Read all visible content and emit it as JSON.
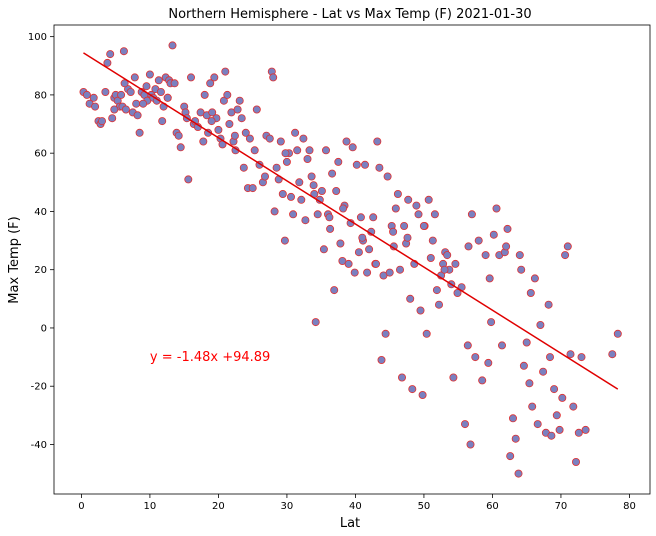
{
  "chart_data": {
    "type": "scatter",
    "title": "Northern Hemisphere - Lat vs Max Temp (F) 2021-01-30",
    "xlabel": "Lat",
    "ylabel": "Max Temp (F)",
    "xlim": [
      -4,
      83
    ],
    "ylim": [
      -57,
      104
    ],
    "xticks": [
      0,
      10,
      20,
      30,
      40,
      50,
      60,
      70,
      80
    ],
    "yticks": [
      -40,
      -20,
      0,
      20,
      40,
      60,
      80,
      100
    ],
    "grid": false,
    "point_fill": "#7a80c0",
    "point_stroke": "#e03030",
    "line_color": "#e00000",
    "regression": {
      "slope": -1.48,
      "intercept": 94.89,
      "x_range": [
        0.3,
        78.3
      ]
    },
    "annotation": {
      "text": "y = -1.48x +94.89",
      "x": 10,
      "y": -10,
      "color": "#ff0000"
    },
    "points": [
      [
        0.3,
        81
      ],
      [
        0.8,
        80
      ],
      [
        1.2,
        77
      ],
      [
        1.8,
        79
      ],
      [
        2.0,
        76
      ],
      [
        2.5,
        71
      ],
      [
        2.8,
        70
      ],
      [
        3.0,
        71
      ],
      [
        3.5,
        81
      ],
      [
        3.8,
        91
      ],
      [
        4.2,
        94
      ],
      [
        4.5,
        72
      ],
      [
        4.8,
        79
      ],
      [
        5.0,
        80
      ],
      [
        5.3,
        78
      ],
      [
        5.6,
        76
      ],
      [
        5.8,
        80
      ],
      [
        6.0,
        76
      ],
      [
        6.2,
        95
      ],
      [
        6.5,
        75
      ],
      [
        6.8,
        82
      ],
      [
        7.2,
        81
      ],
      [
        7.5,
        74
      ],
      [
        7.8,
        86
      ],
      [
        8.0,
        77
      ],
      [
        8.2,
        73
      ],
      [
        8.5,
        67
      ],
      [
        8.8,
        81
      ],
      [
        9.2,
        80
      ],
      [
        9.5,
        83
      ],
      [
        9.6,
        78
      ],
      [
        10.0,
        87
      ],
      [
        10.2,
        80
      ],
      [
        10.5,
        79
      ],
      [
        10.8,
        82
      ],
      [
        11.0,
        78
      ],
      [
        11.3,
        85
      ],
      [
        11.6,
        81
      ],
      [
        11.8,
        71
      ],
      [
        12.0,
        76
      ],
      [
        12.3,
        86
      ],
      [
        12.6,
        79
      ],
      [
        12.8,
        85
      ],
      [
        13.0,
        84
      ],
      [
        13.3,
        97
      ],
      [
        13.6,
        84
      ],
      [
        13.9,
        67
      ],
      [
        14.5,
        62
      ],
      [
        15.0,
        76
      ],
      [
        15.2,
        74
      ],
      [
        15.4,
        72
      ],
      [
        15.6,
        51
      ],
      [
        16.0,
        86
      ],
      [
        16.4,
        70
      ],
      [
        17.0,
        69
      ],
      [
        17.4,
        74
      ],
      [
        17.8,
        64
      ],
      [
        18.0,
        80
      ],
      [
        18.3,
        73
      ],
      [
        18.5,
        67
      ],
      [
        18.8,
        84
      ],
      [
        19.1,
        74
      ],
      [
        19.4,
        86
      ],
      [
        19.7,
        72
      ],
      [
        20.0,
        68
      ],
      [
        20.3,
        65
      ],
      [
        20.6,
        63
      ],
      [
        20.8,
        78
      ],
      [
        21.0,
        88
      ],
      [
        21.3,
        80
      ],
      [
        21.6,
        70
      ],
      [
        21.9,
        74
      ],
      [
        22.2,
        64
      ],
      [
        22.5,
        61
      ],
      [
        22.8,
        75
      ],
      [
        23.1,
        78
      ],
      [
        23.4,
        72
      ],
      [
        23.7,
        55
      ],
      [
        24.0,
        67
      ],
      [
        24.3,
        48
      ],
      [
        24.6,
        65
      ],
      [
        25.0,
        48
      ],
      [
        25.3,
        61
      ],
      [
        25.6,
        75
      ],
      [
        26.0,
        56
      ],
      [
        26.5,
        50
      ],
      [
        27.0,
        66
      ],
      [
        27.5,
        65
      ],
      [
        27.8,
        88
      ],
      [
        28.0,
        86
      ],
      [
        28.2,
        40
      ],
      [
        28.5,
        55
      ],
      [
        28.8,
        51
      ],
      [
        29.1,
        64
      ],
      [
        29.4,
        46
      ],
      [
        29.7,
        30
      ],
      [
        30.0,
        57
      ],
      [
        30.3,
        60
      ],
      [
        30.6,
        45
      ],
      [
        30.9,
        39
      ],
      [
        31.2,
        67
      ],
      [
        31.5,
        61
      ],
      [
        31.8,
        50
      ],
      [
        32.1,
        44
      ],
      [
        32.4,
        65
      ],
      [
        32.7,
        37
      ],
      [
        33.0,
        58
      ],
      [
        33.3,
        61
      ],
      [
        33.6,
        52
      ],
      [
        33.9,
        49
      ],
      [
        34.2,
        2
      ],
      [
        34.5,
        39
      ],
      [
        34.8,
        44
      ],
      [
        35.1,
        47
      ],
      [
        35.4,
        27
      ],
      [
        35.7,
        61
      ],
      [
        36.0,
        39
      ],
      [
        36.3,
        34
      ],
      [
        36.6,
        53
      ],
      [
        36.9,
        13
      ],
      [
        37.2,
        47
      ],
      [
        37.5,
        57
      ],
      [
        37.8,
        29
      ],
      [
        38.1,
        23
      ],
      [
        38.4,
        42
      ],
      [
        38.7,
        64
      ],
      [
        39.0,
        22
      ],
      [
        39.3,
        36
      ],
      [
        39.6,
        62
      ],
      [
        39.9,
        19
      ],
      [
        40.2,
        56
      ],
      [
        40.5,
        26
      ],
      [
        40.8,
        38
      ],
      [
        41.1,
        30
      ],
      [
        41.4,
        56
      ],
      [
        41.7,
        19
      ],
      [
        42.0,
        27
      ],
      [
        42.3,
        33
      ],
      [
        42.6,
        38
      ],
      [
        42.9,
        22
      ],
      [
        43.2,
        64
      ],
      [
        43.5,
        55
      ],
      [
        43.8,
        -11
      ],
      [
        44.1,
        18
      ],
      [
        44.4,
        -2
      ],
      [
        44.7,
        52
      ],
      [
        45.0,
        19
      ],
      [
        45.3,
        35
      ],
      [
        45.6,
        28
      ],
      [
        45.9,
        41
      ],
      [
        46.2,
        46
      ],
      [
        46.5,
        20
      ],
      [
        46.8,
        -17
      ],
      [
        47.1,
        35
      ],
      [
        47.4,
        29
      ],
      [
        47.7,
        44
      ],
      [
        48.0,
        10
      ],
      [
        48.3,
        -21
      ],
      [
        48.6,
        22
      ],
      [
        48.9,
        42
      ],
      [
        49.2,
        39
      ],
      [
        49.5,
        6
      ],
      [
        49.8,
        -23
      ],
      [
        50.1,
        35
      ],
      [
        50.4,
        -2
      ],
      [
        50.7,
        44
      ],
      [
        51.0,
        24
      ],
      [
        51.3,
        30
      ],
      [
        51.6,
        39
      ],
      [
        51.9,
        13
      ],
      [
        52.2,
        8
      ],
      [
        52.5,
        18
      ],
      [
        52.8,
        22
      ],
      [
        53.1,
        26
      ],
      [
        53.4,
        25
      ],
      [
        53.7,
        20
      ],
      [
        54.0,
        15
      ],
      [
        54.3,
        -17
      ],
      [
        54.6,
        22
      ],
      [
        54.9,
        12
      ],
      [
        55.5,
        14
      ],
      [
        56.0,
        -33
      ],
      [
        56.4,
        -6
      ],
      [
        56.8,
        -40
      ],
      [
        57.0,
        39
      ],
      [
        57.5,
        -10
      ],
      [
        58.0,
        30
      ],
      [
        58.5,
        -18
      ],
      [
        59.0,
        25
      ],
      [
        59.4,
        -12
      ],
      [
        59.8,
        2
      ],
      [
        60.2,
        32
      ],
      [
        60.6,
        41
      ],
      [
        61.0,
        25
      ],
      [
        61.4,
        -6
      ],
      [
        61.8,
        26
      ],
      [
        62.2,
        34
      ],
      [
        62.6,
        -44
      ],
      [
        63.0,
        -31
      ],
      [
        63.4,
        -38
      ],
      [
        63.8,
        -50
      ],
      [
        64.2,
        20
      ],
      [
        64.6,
        -13
      ],
      [
        65.0,
        -5
      ],
      [
        65.4,
        -19
      ],
      [
        65.8,
        -27
      ],
      [
        66.2,
        17
      ],
      [
        66.6,
        -33
      ],
      [
        67.0,
        1
      ],
      [
        67.4,
        -15
      ],
      [
        67.8,
        -36
      ],
      [
        68.2,
        8
      ],
      [
        68.6,
        -37
      ],
      [
        69.0,
        -21
      ],
      [
        69.4,
        -30
      ],
      [
        69.8,
        -35
      ],
      [
        70.2,
        -24
      ],
      [
        70.6,
        25
      ],
      [
        71.0,
        28
      ],
      [
        71.4,
        -9
      ],
      [
        71.8,
        -27
      ],
      [
        72.2,
        -46
      ],
      [
        72.6,
        -36
      ],
      [
        73.0,
        -10
      ],
      [
        73.6,
        -35
      ],
      [
        77.5,
        -9
      ],
      [
        78.3,
        -2
      ],
      [
        4.8,
        75
      ],
      [
        6.3,
        84
      ],
      [
        9.0,
        77
      ],
      [
        12.6,
        79
      ],
      [
        14.2,
        66
      ],
      [
        16.6,
        71
      ],
      [
        19.0,
        71
      ],
      [
        22.4,
        66
      ],
      [
        26.8,
        52
      ],
      [
        29.8,
        60
      ],
      [
        34.0,
        46
      ],
      [
        36.2,
        38
      ],
      [
        38.2,
        41
      ],
      [
        41.0,
        31
      ],
      [
        43.0,
        22
      ],
      [
        45.5,
        33
      ],
      [
        47.6,
        31
      ],
      [
        50.0,
        35
      ],
      [
        53.0,
        20
      ],
      [
        56.5,
        28
      ],
      [
        59.6,
        17
      ],
      [
        62.0,
        28
      ],
      [
        64.0,
        25
      ],
      [
        65.6,
        12
      ],
      [
        68.4,
        -10
      ]
    ]
  }
}
